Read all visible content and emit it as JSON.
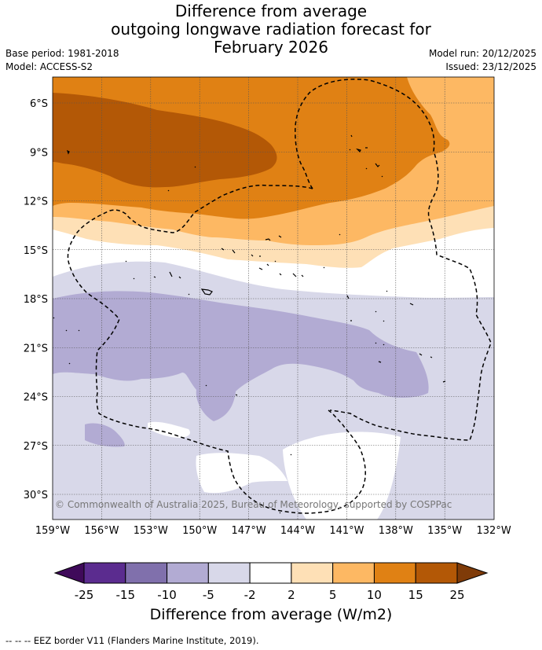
{
  "title": {
    "line1": "Difference from average",
    "line2": "outgoing longwave radiation forecast for",
    "line3": "February 2026"
  },
  "meta": {
    "base_period": "Base period: 1981-2018",
    "model": "Model: ACCESS-S2",
    "model_run": "Model run: 20/12/2025",
    "issued": "Issued: 23/12/2025"
  },
  "map": {
    "lat_labels": [
      "6°S",
      "9°S",
      "12°S",
      "15°S",
      "18°S",
      "21°S",
      "24°S",
      "27°S",
      "30°S"
    ],
    "lon_labels": [
      "159°W",
      "156°W",
      "153°W",
      "150°W",
      "147°W",
      "144°W",
      "141°W",
      "138°W",
      "135°W",
      "132°W"
    ],
    "copyright": "© Commonwealth of Australia 2025, Bureau of Meteorology, supported by COSPPac"
  },
  "colorbar": {
    "ticks": [
      "-25",
      "-15",
      "-10",
      "-5",
      "-2",
      "2",
      "5",
      "10",
      "15",
      "25"
    ],
    "colors": [
      "#3f0a5a",
      "#5b2c8f",
      "#8070ac",
      "#b2abd3",
      "#d8d8e9",
      "#ffffff",
      "#fee0b6",
      "#fdb863",
      "#e08114",
      "#b35806",
      "#7f3b08"
    ],
    "label": "Difference from average (W/m2)"
  },
  "footer": "--  --  -- EEZ border V11 (Flanders Marine Institute, 2019)."
}
